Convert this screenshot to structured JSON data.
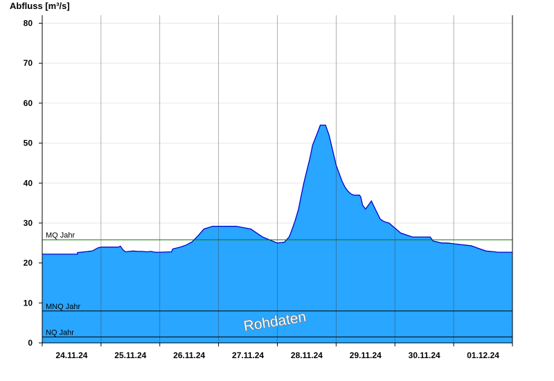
{
  "chart_data": {
    "type": "area",
    "ylabel": "Abfluss [m³/s]",
    "ylim": [
      0,
      82
    ],
    "yticks": [
      0,
      10,
      20,
      30,
      40,
      50,
      60,
      70,
      80
    ],
    "xlim": [
      0,
      8
    ],
    "days": [
      "24.11.24",
      "25.11.24",
      "26.11.24",
      "27.11.24",
      "28.11.24",
      "29.11.24",
      "30.11.24",
      "01.12.24"
    ],
    "series": [
      {
        "color": "#29a6ff",
        "line_color": "#0000cc",
        "x": [
          0,
          0.6,
          0.6,
          0.85,
          0.95,
          1.0,
          1.05,
          1.1,
          1.2,
          1.3,
          1.33,
          1.38,
          1.42,
          1.48,
          1.55,
          1.62,
          1.7,
          1.78,
          1.85,
          1.92,
          2.0,
          2.2,
          2.22,
          2.35,
          2.45,
          2.55,
          2.65,
          2.75,
          2.9,
          2.95,
          3.05,
          3.1,
          3.2,
          3.3,
          3.55,
          3.7,
          3.75,
          4.0,
          4.12,
          4.2,
          4.24,
          4.3,
          4.36,
          4.4,
          4.45,
          4.5,
          4.55,
          4.6,
          4.68,
          4.73,
          4.75,
          4.78,
          4.82,
          4.88,
          4.92,
          4.96,
          5.0,
          5.05,
          5.1,
          5.15,
          5.2,
          5.25,
          5.3,
          5.35,
          5.4,
          5.42,
          5.45,
          5.5,
          5.55,
          5.6,
          5.65,
          5.7,
          5.75,
          5.8,
          5.85,
          5.9,
          6.1,
          6.3,
          6.45,
          6.5,
          6.6,
          6.65,
          6.8,
          6.9,
          7.0,
          7.3,
          7.45,
          7.55,
          7.7,
          7.75,
          7.82,
          8.0
        ],
        "y": [
          22.2,
          22.2,
          22.6,
          23.0,
          23.8,
          24.0,
          24.0,
          24.0,
          24.0,
          24.0,
          24.2,
          23.2,
          22.8,
          22.9,
          23.0,
          22.9,
          22.9,
          22.8,
          22.9,
          22.7,
          22.7,
          22.8,
          23.5,
          24.0,
          24.5,
          25.3,
          26.8,
          28.5,
          29.2,
          29.2,
          29.2,
          29.2,
          29.2,
          29.2,
          28.5,
          27.0,
          26.5,
          25.0,
          25.2,
          26.5,
          28.0,
          30.5,
          33.5,
          36.5,
          40.0,
          43.0,
          46.0,
          49.5,
          52.5,
          54.5,
          54.5,
          54.5,
          54.5,
          52.0,
          49.5,
          47.0,
          44.5,
          42.5,
          40.5,
          39.0,
          38.0,
          37.3,
          37.0,
          37.0,
          37.0,
          36.5,
          34.5,
          33.5,
          34.5,
          35.5,
          34.0,
          32.5,
          31.0,
          30.5,
          30.2,
          30.0,
          27.5,
          26.5,
          26.5,
          26.5,
          26.5,
          25.5,
          25.0,
          25.0,
          24.8,
          24.3,
          23.5,
          23.0,
          22.8,
          22.7,
          22.7,
          22.7
        ]
      }
    ],
    "reference_lines": [
      {
        "label": "MQ Jahr",
        "value": 25.8,
        "color": "#007700"
      },
      {
        "label": "MNQ Jahr",
        "value": 8.0,
        "color": "#000000"
      },
      {
        "label": "NQ Jahr",
        "value": 1.5,
        "color": "#000000"
      }
    ],
    "grid": "horizontal light grey, vertical day separators",
    "watermark": "Rohdaten"
  }
}
